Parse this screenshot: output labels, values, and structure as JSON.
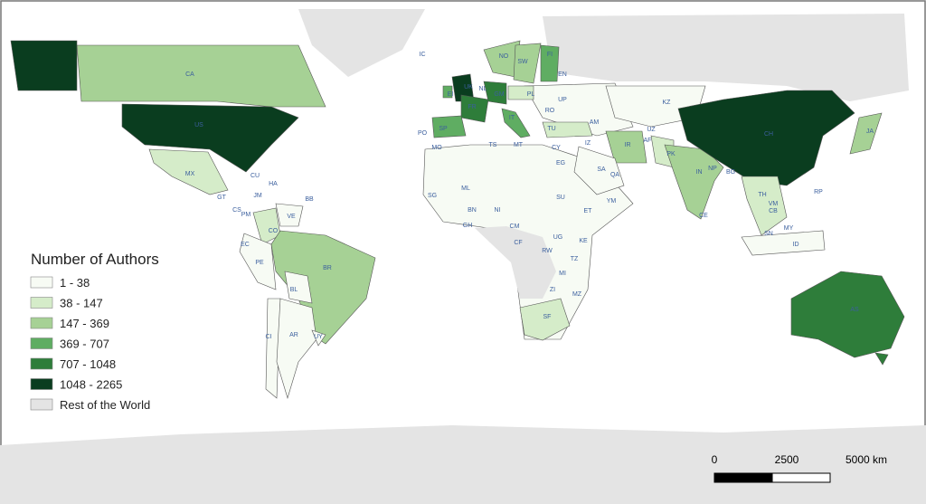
{
  "legend": {
    "title": "Number of Authors",
    "classes": [
      {
        "label": "1 - 38",
        "color": "#f7fbf4"
      },
      {
        "label": "38 - 147",
        "color": "#d5ecc9"
      },
      {
        "label": "147 - 369",
        "color": "#a6d195"
      },
      {
        "label": "369 - 707",
        "color": "#5fad62"
      },
      {
        "label": "707 - 1048",
        "color": "#2e7d3a"
      },
      {
        "label": "1048 - 2265",
        "color": "#0a3d1f"
      }
    ],
    "rest": {
      "label": "Rest of the World",
      "color": "#e4e4e4"
    }
  },
  "countries": [
    {
      "code": "CA",
      "class": 2
    },
    {
      "code": "US",
      "class": 5
    },
    {
      "code": "MX",
      "class": 1
    },
    {
      "code": "CU",
      "class": 0
    },
    {
      "code": "HA",
      "class": 0
    },
    {
      "code": "JM",
      "class": 0
    },
    {
      "code": "BB",
      "class": 0
    },
    {
      "code": "VE",
      "class": 0
    },
    {
      "code": "CS",
      "class": 0
    },
    {
      "code": "PM",
      "class": 0
    },
    {
      "code": "GT",
      "class": 0
    },
    {
      "code": "CO",
      "class": 1
    },
    {
      "code": "EC",
      "class": 0
    },
    {
      "code": "PE",
      "class": 0
    },
    {
      "code": "BR",
      "class": 2
    },
    {
      "code": "BL",
      "class": 0
    },
    {
      "code": "CI",
      "class": 0
    },
    {
      "code": "AR",
      "class": 0
    },
    {
      "code": "UY",
      "class": 0
    },
    {
      "code": "IC",
      "class": 0
    },
    {
      "code": "UK",
      "class": 5
    },
    {
      "code": "EI",
      "class": 3
    },
    {
      "code": "NO",
      "class": 2
    },
    {
      "code": "SW",
      "class": 2
    },
    {
      "code": "FI",
      "class": 3
    },
    {
      "code": "EN",
      "class": 2
    },
    {
      "code": "NL",
      "class": 4
    },
    {
      "code": "GM",
      "class": 4
    },
    {
      "code": "FR",
      "class": 4
    },
    {
      "code": "PL",
      "class": 1
    },
    {
      "code": "UP",
      "class": 0
    },
    {
      "code": "SP",
      "class": 3
    },
    {
      "code": "PO",
      "class": 1
    },
    {
      "code": "IT",
      "class": 3
    },
    {
      "code": "RO",
      "class": 0
    },
    {
      "code": "TU",
      "class": 1
    },
    {
      "code": "MO",
      "class": 0
    },
    {
      "code": "TS",
      "class": 0
    },
    {
      "code": "MT",
      "class": 0
    },
    {
      "code": "AM",
      "class": 0
    },
    {
      "code": "IZ",
      "class": 0
    },
    {
      "code": "IR",
      "class": 2
    },
    {
      "code": "CY",
      "class": 0
    },
    {
      "code": "EG",
      "class": 0
    },
    {
      "code": "SA",
      "class": 0
    },
    {
      "code": "QA",
      "class": 0
    },
    {
      "code": "YM",
      "class": 0
    },
    {
      "code": "KZ",
      "class": 0
    },
    {
      "code": "UZ",
      "class": 0
    },
    {
      "code": "AF",
      "class": 0
    },
    {
      "code": "PK",
      "class": 1
    },
    {
      "code": "IN",
      "class": 2
    },
    {
      "code": "NP",
      "class": 0
    },
    {
      "code": "BG",
      "class": 0
    },
    {
      "code": "CH",
      "class": 5
    },
    {
      "code": "JA",
      "class": 2
    },
    {
      "code": "TH",
      "class": 1
    },
    {
      "code": "VM",
      "class": 0
    },
    {
      "code": "CB",
      "class": 0
    },
    {
      "code": "RP",
      "class": 0
    },
    {
      "code": "MY",
      "class": 1
    },
    {
      "code": "SN",
      "class": 0
    },
    {
      "code": "ID",
      "class": 0
    },
    {
      "code": "CE",
      "class": 0
    },
    {
      "code": "ML",
      "class": 0
    },
    {
      "code": "SG",
      "class": 0
    },
    {
      "code": "NI",
      "class": 0
    },
    {
      "code": "BN",
      "class": 0
    },
    {
      "code": "GH",
      "class": 0
    },
    {
      "code": "CM",
      "class": 0
    },
    {
      "code": "SU",
      "class": 0
    },
    {
      "code": "ET",
      "class": 0
    },
    {
      "code": "UG",
      "class": 0
    },
    {
      "code": "KE",
      "class": 0
    },
    {
      "code": "RW",
      "class": 0
    },
    {
      "code": "CF",
      "class": 0
    },
    {
      "code": "TZ",
      "class": 0
    },
    {
      "code": "MI",
      "class": 0
    },
    {
      "code": "ZI",
      "class": 0
    },
    {
      "code": "MZ",
      "class": 0
    },
    {
      "code": "SF",
      "class": 1
    },
    {
      "code": "AS",
      "class": 4
    }
  ],
  "scale_bar": {
    "labels": [
      "0",
      "2500",
      "5000 km"
    ]
  }
}
